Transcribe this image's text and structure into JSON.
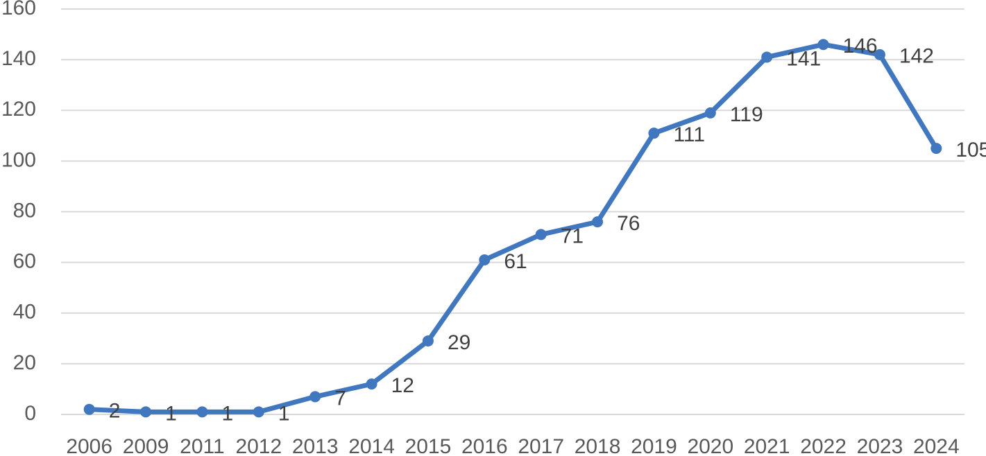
{
  "chart_data": {
    "type": "line",
    "categories": [
      "2006",
      "2009",
      "2011",
      "2012",
      "2013",
      "2014",
      "2015",
      "2016",
      "2017",
      "2018",
      "2019",
      "2020",
      "2021",
      "2022",
      "2023",
      "2024"
    ],
    "values": [
      2,
      1,
      1,
      1,
      7,
      12,
      29,
      61,
      71,
      76,
      111,
      119,
      141,
      146,
      142,
      105
    ],
    "color": "#4177bf",
    "ylim": [
      0,
      160
    ],
    "yticks": [
      0,
      20,
      40,
      60,
      80,
      100,
      120,
      140,
      160
    ],
    "grid": true
  }
}
